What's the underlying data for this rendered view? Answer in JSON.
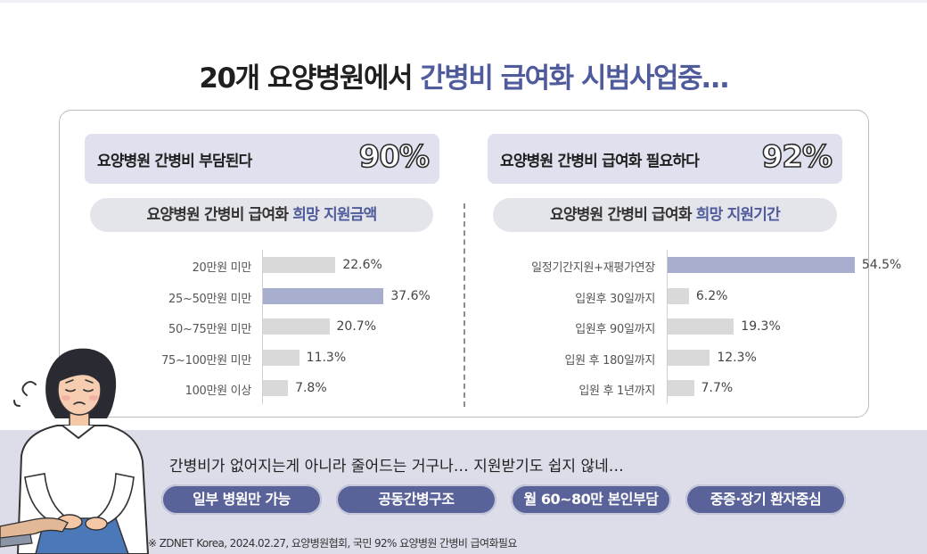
{
  "title": {
    "prefix": "20개 요양병원에서 ",
    "highlight": "간병비 급여화 시범사업중…"
  },
  "stats": [
    {
      "label": "요양병원 간병비 부담된다",
      "value": "90%"
    },
    {
      "label": "요양병원 간병비 급여화 필요하다",
      "value": "92%"
    }
  ],
  "colors": {
    "accent": "#4f5b9a",
    "highlight_bar": "#a7aecd",
    "bar": "#d9d9d9",
    "tag": "#5a6399",
    "panel": "#dcdde9"
  },
  "chart_data": [
    {
      "type": "bar",
      "orientation": "horizontal",
      "title": "요양병원 간병비 급여화 희망 지원금액",
      "title_plain": "요양병원 간병비 급여화 ",
      "title_highlight": "희망 지원금액",
      "categories": [
        "20만원 미만",
        "25~50만원 미만",
        "50~75만원 미만",
        "75~100만원 미만",
        "100만원 이상"
      ],
      "values": [
        22.6,
        37.6,
        20.7,
        11.3,
        7.8
      ],
      "value_labels": [
        "22.6%",
        "37.6%",
        "20.7%",
        "11.3%",
        "7.8%"
      ],
      "highlight_index": 1,
      "unit": "%"
    },
    {
      "type": "bar",
      "orientation": "horizontal",
      "title": "요양병원 간병비 급여화 희망 지원기간",
      "title_plain": "요양병원 간병비 급여화 ",
      "title_highlight": "희망 지원기간",
      "categories": [
        "일정기간지원+재평가연장",
        "입원후 30일까지",
        "입원후 90일까지",
        "입원 후 180일까지",
        "입원 후 1년까지"
      ],
      "values": [
        54.5,
        6.2,
        19.3,
        12.3,
        7.7
      ],
      "value_labels": [
        "54.5%",
        "6.2%",
        "19.3%",
        "12.3%",
        "7.7%"
      ],
      "highlight_index": 0,
      "unit": "%"
    }
  ],
  "quote": "간병비가 없어지는게 아니라 줄어드는 거구나… 지원받기도 쉽지 않네…",
  "tags": [
    "일부 병원만 가능",
    "공동간병구조",
    "월 60~80만 본인부담",
    "중증·장기 환자중심"
  ],
  "source": "※ ZDNET Korea, 2024.02.27, 요양병원협회, 국민 92% 요양병원 간병비 급여화필요"
}
